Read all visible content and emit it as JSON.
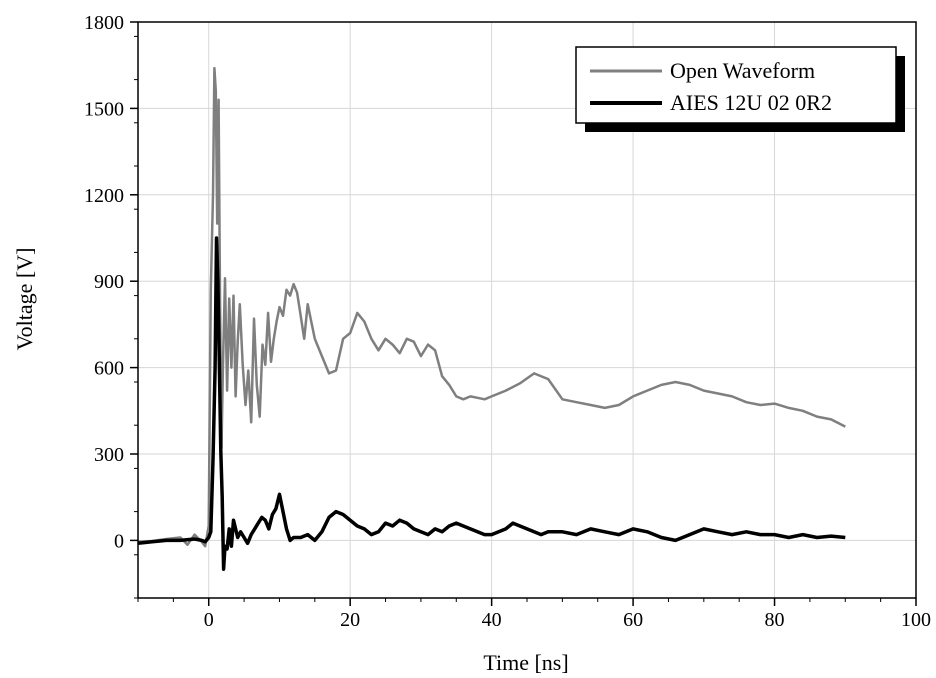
{
  "chart_data": {
    "type": "line",
    "xlabel": "Time [ns]",
    "ylabel": "Voltage [V]",
    "xlim": [
      -10,
      100
    ],
    "ylim": [
      -200,
      1800
    ],
    "x_ticks": [
      0,
      20,
      40,
      60,
      80,
      100
    ],
    "y_ticks": [
      0,
      300,
      600,
      900,
      1200,
      1500,
      1800
    ],
    "grid": true,
    "legend_position": "top-right",
    "colors": {
      "open_waveform": "#7f7f7f",
      "aies": "#000000"
    },
    "series": [
      {
        "name": "Open Waveform",
        "x": [
          -10,
          -8,
          -6,
          -4,
          -3,
          -2,
          -1,
          -0.5,
          0,
          0.3,
          0.6,
          0.8,
          1.0,
          1.2,
          1.4,
          1.6,
          1.8,
          2.0,
          2.3,
          2.6,
          2.9,
          3.2,
          3.5,
          3.8,
          4.1,
          4.4,
          4.8,
          5.2,
          5.6,
          6.0,
          6.4,
          6.8,
          7.2,
          7.6,
          8.0,
          8.4,
          8.8,
          9.2,
          9.6,
          10,
          10.5,
          11,
          11.5,
          12,
          12.5,
          13,
          13.5,
          14,
          15,
          16,
          17,
          18,
          19,
          20,
          21,
          22,
          23,
          24,
          25,
          26,
          27,
          28,
          29,
          30,
          31,
          32,
          33,
          34,
          35,
          36,
          37,
          38,
          39,
          40,
          42,
          44,
          46,
          48,
          50,
          52,
          54,
          56,
          58,
          60,
          62,
          64,
          66,
          68,
          70,
          72,
          74,
          76,
          78,
          80,
          82,
          84,
          86,
          88,
          90
        ],
        "values": [
          -5,
          -2,
          5,
          10,
          -15,
          20,
          -5,
          -20,
          50,
          870,
          1200,
          1640,
          1560,
          1100,
          1530,
          850,
          320,
          600,
          910,
          520,
          840,
          600,
          850,
          500,
          690,
          820,
          610,
          470,
          590,
          410,
          770,
          540,
          430,
          680,
          610,
          790,
          620,
          700,
          760,
          810,
          780,
          870,
          850,
          890,
          860,
          780,
          700,
          820,
          700,
          640,
          580,
          590,
          700,
          720,
          790,
          760,
          700,
          660,
          700,
          680,
          650,
          700,
          690,
          640,
          680,
          660,
          570,
          540,
          500,
          490,
          500,
          495,
          490,
          500,
          520,
          545,
          580,
          560,
          490,
          480,
          470,
          460,
          470,
          500,
          520,
          540,
          550,
          540,
          520,
          510,
          500,
          480,
          470,
          475,
          460,
          450,
          430,
          420,
          395
        ]
      },
      {
        "name": "AIES 12U 02 0R2",
        "x": [
          -10,
          -8,
          -6,
          -4,
          -2,
          -1,
          -0.5,
          0,
          0.3,
          0.6,
          0.9,
          1.1,
          1.3,
          1.5,
          1.7,
          1.9,
          2.1,
          2.3,
          2.6,
          2.9,
          3.2,
          3.5,
          3.8,
          4.1,
          4.5,
          5,
          5.5,
          6,
          6.5,
          7,
          7.5,
          8,
          8.5,
          9,
          9.5,
          10,
          10.5,
          11,
          11.5,
          12,
          13,
          14,
          15,
          16,
          17,
          18,
          19,
          20,
          21,
          22,
          23,
          24,
          25,
          26,
          27,
          28,
          29,
          30,
          31,
          32,
          33,
          34,
          35,
          36,
          37,
          38,
          39,
          40,
          41,
          42,
          43,
          44,
          45,
          46,
          47,
          48,
          50,
          52,
          54,
          56,
          58,
          60,
          62,
          64,
          66,
          68,
          70,
          72,
          74,
          76,
          78,
          80,
          82,
          84,
          86,
          88,
          90
        ],
        "values": [
          -10,
          -5,
          0,
          0,
          5,
          0,
          -5,
          10,
          30,
          280,
          600,
          1050,
          900,
          620,
          310,
          150,
          -100,
          -20,
          -30,
          40,
          -20,
          70,
          40,
          10,
          30,
          10,
          -10,
          20,
          40,
          60,
          80,
          70,
          40,
          90,
          110,
          160,
          100,
          40,
          0,
          10,
          10,
          20,
          0,
          30,
          80,
          100,
          90,
          70,
          50,
          40,
          20,
          30,
          60,
          50,
          70,
          60,
          40,
          30,
          20,
          40,
          30,
          50,
          60,
          50,
          40,
          30,
          20,
          20,
          30,
          40,
          60,
          50,
          40,
          30,
          20,
          30,
          30,
          20,
          40,
          30,
          20,
          40,
          30,
          10,
          0,
          20,
          40,
          30,
          20,
          30,
          20,
          20,
          10,
          20,
          10,
          15,
          10
        ]
      }
    ]
  }
}
